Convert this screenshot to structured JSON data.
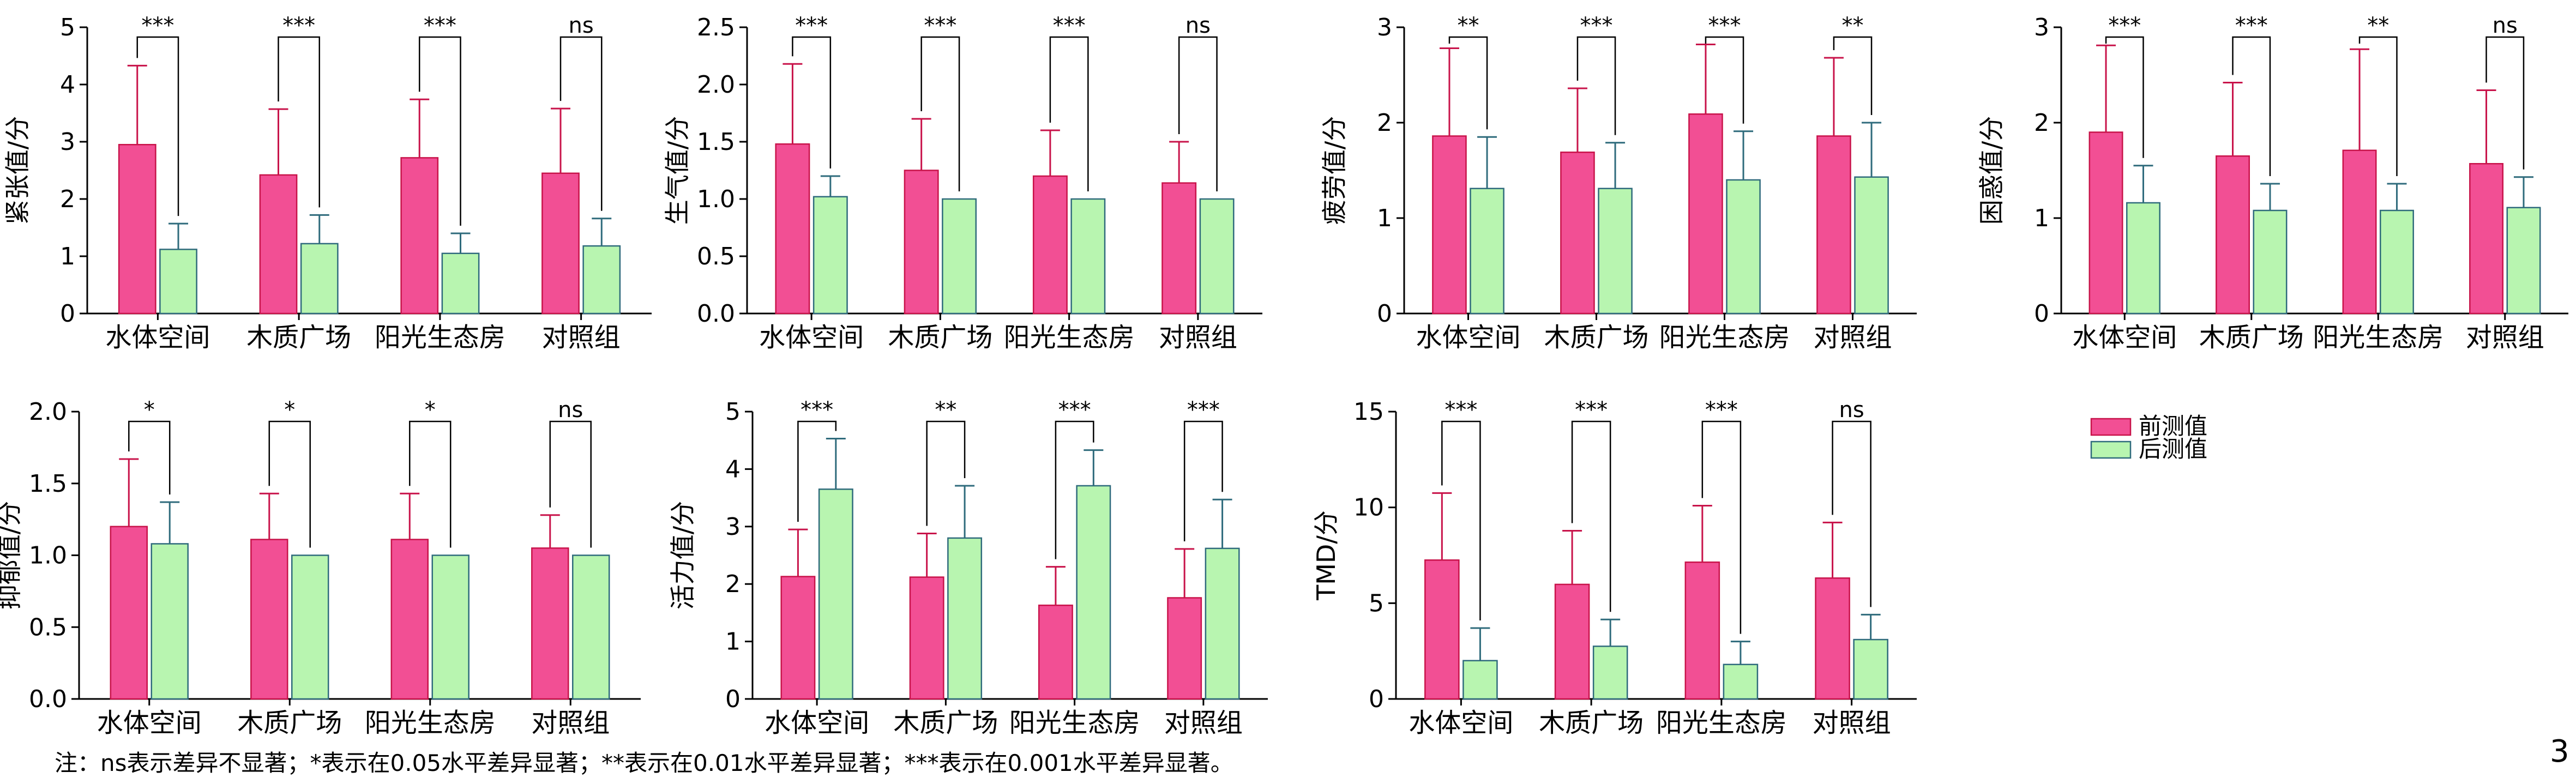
{
  "chart_data": [
    {
      "type": "bar",
      "id": "tension",
      "categories": [
        "水体空间",
        "木质广场",
        "阳光生态房",
        "对照组"
      ],
      "ylabel": "紧张值/分",
      "ylim": [
        0,
        5
      ],
      "yticks": [
        "0",
        "1",
        "2",
        "3",
        "4",
        "5"
      ],
      "series": [
        {
          "name": "前测值",
          "values": [
            2.95,
            2.42,
            2.72,
            2.45
          ],
          "errors": [
            1.38,
            1.15,
            1.02,
            1.13
          ]
        },
        {
          "name": "后测值",
          "values": [
            1.12,
            1.22,
            1.05,
            1.18
          ],
          "errors": [
            0.45,
            0.5,
            0.35,
            0.48
          ]
        }
      ],
      "significance": [
        "***",
        "***",
        "***",
        "ns"
      ]
    },
    {
      "type": "bar",
      "id": "anger",
      "categories": [
        "水体空间",
        "木质广场",
        "阳光生态房",
        "对照组"
      ],
      "ylabel": "生气值/分",
      "ylim": [
        0,
        2.5
      ],
      "yticks": [
        "0.0",
        "0.5",
        "1.0",
        "1.5",
        "2.0",
        "2.5"
      ],
      "series": [
        {
          "name": "前测值",
          "values": [
            1.48,
            1.25,
            1.2,
            1.14
          ],
          "errors": [
            0.7,
            0.45,
            0.4,
            0.36
          ]
        },
        {
          "name": "后测值",
          "values": [
            1.02,
            1.0,
            1.0,
            1.0
          ],
          "errors": [
            0.18,
            0,
            0,
            0
          ]
        }
      ],
      "significance": [
        "***",
        "***",
        "***",
        "ns"
      ]
    },
    {
      "type": "bar",
      "id": "fatigue",
      "categories": [
        "水体空间",
        "木质广场",
        "阳光生态房",
        "对照组"
      ],
      "ylabel": "疲劳值/分",
      "ylim": [
        0,
        3
      ],
      "yticks": [
        "0",
        "1",
        "2",
        "3"
      ],
      "series": [
        {
          "name": "前测值",
          "values": [
            1.86,
            1.69,
            2.09,
            1.86
          ],
          "errors": [
            0.92,
            0.67,
            0.73,
            0.82
          ]
        },
        {
          "name": "后测值",
          "values": [
            1.31,
            1.31,
            1.4,
            1.43
          ],
          "errors": [
            0.54,
            0.48,
            0.51,
            0.57
          ]
        }
      ],
      "significance": [
        "**",
        "***",
        "***",
        "**"
      ]
    },
    {
      "type": "bar",
      "id": "confusion",
      "categories": [
        "水体空间",
        "木质广场",
        "阳光生态房",
        "对照组"
      ],
      "ylabel": "困惑值/分",
      "ylim": [
        0,
        3
      ],
      "yticks": [
        "0",
        "1",
        "2",
        "3"
      ],
      "series": [
        {
          "name": "前测值",
          "values": [
            1.9,
            1.65,
            1.71,
            1.57
          ],
          "errors": [
            0.91,
            0.77,
            1.06,
            0.77
          ]
        },
        {
          "name": "后测值",
          "values": [
            1.16,
            1.08,
            1.08,
            1.11
          ],
          "errors": [
            0.39,
            0.28,
            0.28,
            0.32
          ]
        }
      ],
      "significance": [
        "***",
        "***",
        "**",
        "ns"
      ]
    },
    {
      "type": "bar",
      "id": "depression",
      "categories": [
        "水体空间",
        "木质广场",
        "阳光生态房",
        "对照组"
      ],
      "ylabel": "抑郁值/分",
      "ylim": [
        0,
        2.0
      ],
      "yticks": [
        "0.0",
        "0.5",
        "1.0",
        "1.5",
        "2.0"
      ],
      "series": [
        {
          "name": "前测值",
          "values": [
            1.2,
            1.11,
            1.11,
            1.05
          ],
          "errors": [
            0.47,
            0.32,
            0.32,
            0.23
          ]
        },
        {
          "name": "后测值",
          "values": [
            1.08,
            1.0,
            1.0,
            1.0
          ],
          "errors": [
            0.29,
            0,
            0,
            0
          ]
        }
      ],
      "significance": [
        "*",
        "*",
        "*",
        "ns"
      ]
    },
    {
      "type": "bar",
      "id": "vigor",
      "categories": [
        "水体空间",
        "木质广场",
        "阳光生态房",
        "对照组"
      ],
      "ylabel": "活力值/分",
      "ylim": [
        0,
        5
      ],
      "yticks": [
        "0",
        "1",
        "2",
        "3",
        "4",
        "5"
      ],
      "series": [
        {
          "name": "前测值",
          "values": [
            2.13,
            2.12,
            1.63,
            1.76
          ],
          "errors": [
            0.82,
            0.76,
            0.67,
            0.85
          ]
        },
        {
          "name": "后测值",
          "values": [
            3.65,
            2.8,
            3.71,
            2.62
          ],
          "errors": [
            0.88,
            0.91,
            0.62,
            0.85
          ]
        }
      ],
      "significance": [
        "***",
        "**",
        "***",
        "***"
      ]
    },
    {
      "type": "bar",
      "id": "tmd",
      "categories": [
        "水体空间",
        "木质广场",
        "阳光生态房",
        "对照组"
      ],
      "ylabel": "TMD/分",
      "ylim": [
        0,
        15
      ],
      "yticks": [
        "0",
        "5",
        "10",
        "15"
      ],
      "series": [
        {
          "name": "前测值",
          "values": [
            7.25,
            5.98,
            7.14,
            6.31
          ],
          "errors": [
            3.5,
            2.8,
            2.95,
            2.9
          ]
        },
        {
          "name": "后测值",
          "values": [
            2.0,
            2.75,
            1.8,
            3.1
          ],
          "errors": [
            1.7,
            1.4,
            1.2,
            1.3
          ]
        }
      ],
      "significance": [
        "***",
        "***",
        "***",
        "ns"
      ]
    }
  ],
  "legend": {
    "items": [
      "前测值",
      "后测值"
    ]
  },
  "colors": {
    "pre_fill": "#f24f94",
    "pre_stroke": "#c8134a",
    "post_fill": "#b8f5b0",
    "post_stroke": "#2f6b7c"
  },
  "note": "注：ns表示差异不显著；*表示在0.05水平差异显著；**表示在0.01水平差异显著；***表示在0.001水平差异显著。",
  "page_number": "3"
}
